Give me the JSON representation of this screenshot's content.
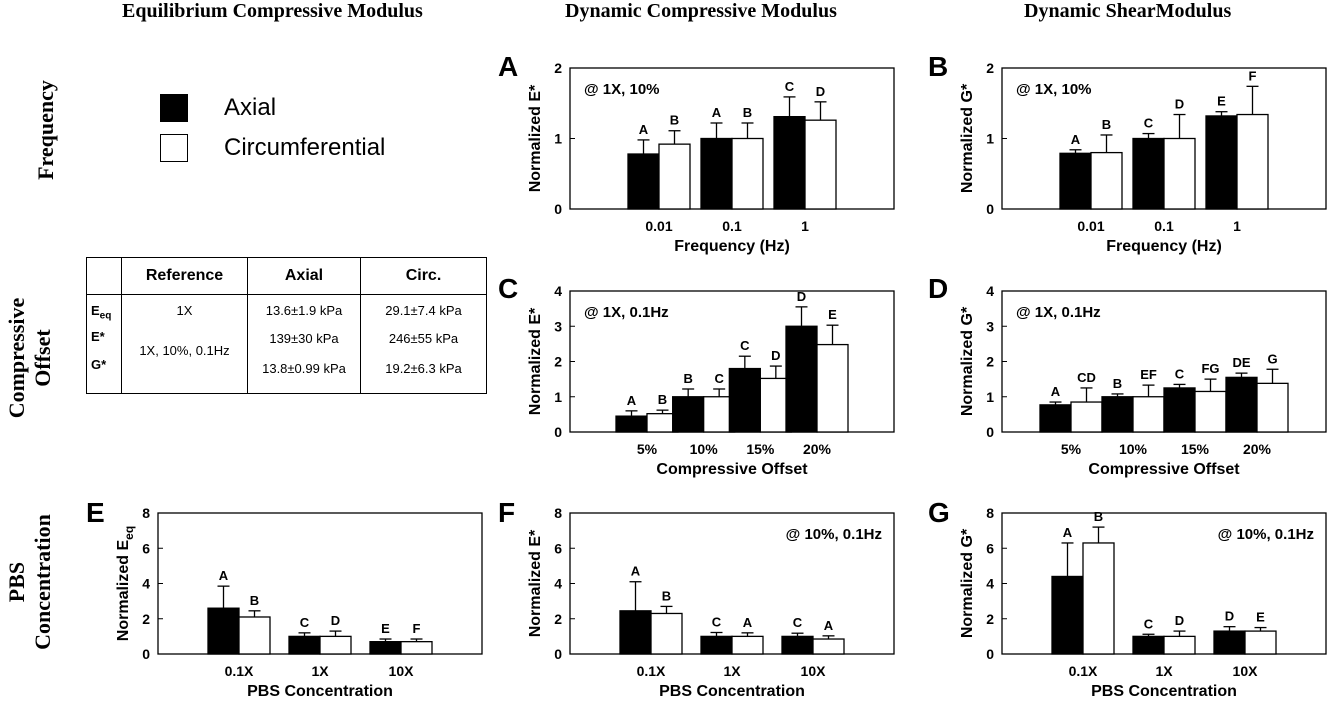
{
  "column_headers": [
    "Equilibrium Compressive Modulus",
    "Dynamic Compressive Modulus",
    "Dynamic ShearModulus"
  ],
  "row_headers": [
    [
      "Frequency"
    ],
    [
      "Compressive",
      "Offset"
    ],
    [
      "PBS",
      "Concentration"
    ]
  ],
  "legend": [
    {
      "label": "Axial",
      "color": "#000000"
    },
    {
      "label": "Circumferential",
      "color": "#ffffff"
    }
  ],
  "reference_table": {
    "headers": [
      "",
      "Reference",
      "Axial",
      "Circ."
    ],
    "row_labels": [
      "E",
      "E*",
      "G*"
    ],
    "row_label_subscripts": [
      "eq",
      "",
      ""
    ],
    "reference_values": [
      "1X",
      "1X, 10%, 0.1Hz"
    ],
    "axial": [
      "13.6±1.9 kPa",
      "139±30 kPa",
      "13.8±0.99 kPa"
    ],
    "circ": [
      "29.1±7.4 kPa",
      "246±55 kPa",
      "19.2±6.3 kPa"
    ]
  },
  "chart_data": [
    {
      "panel": "A",
      "type": "bar",
      "categories": [
        "0.01",
        "0.1",
        "1"
      ],
      "xlabel": "Frequency (Hz)",
      "ylabel": "Normalized E*",
      "ylim": [
        0,
        2
      ],
      "yticks": [
        "0",
        "1",
        "2"
      ],
      "annotation": "@ 1X, 10%",
      "annotation_position": "top-left",
      "series": [
        {
          "name": "Axial",
          "values": [
            0.78,
            1.0,
            1.31
          ],
          "errors": [
            0.2,
            0.22,
            0.28
          ],
          "letters": [
            "A",
            "A",
            "C"
          ]
        },
        {
          "name": "Circumferential",
          "values": [
            0.92,
            1.0,
            1.26
          ],
          "errors": [
            0.19,
            0.22,
            0.26
          ],
          "letters": [
            "B",
            "B",
            "D"
          ]
        }
      ]
    },
    {
      "panel": "B",
      "type": "bar",
      "categories": [
        "0.01",
        "0.1",
        "1"
      ],
      "xlabel": "Frequency (Hz)",
      "ylabel": "Normalized G*",
      "ylim": [
        0,
        2
      ],
      "yticks": [
        "0",
        "1",
        "2"
      ],
      "annotation": "@ 1X, 10%",
      "annotation_position": "top-left",
      "series": [
        {
          "name": "Axial",
          "values": [
            0.79,
            1.0,
            1.32
          ],
          "errors": [
            0.05,
            0.07,
            0.06
          ],
          "letters": [
            "A",
            "C",
            "E"
          ]
        },
        {
          "name": "Circumferential",
          "values": [
            0.8,
            1.0,
            1.34
          ],
          "errors": [
            0.25,
            0.34,
            0.4
          ],
          "letters": [
            "B",
            "D",
            "F"
          ]
        }
      ]
    },
    {
      "panel": "C",
      "type": "bar",
      "categories": [
        "5%",
        "10%",
        "15%",
        "20%"
      ],
      "xlabel": "Compressive Offset",
      "ylabel": "Normalized E*",
      "ylim": [
        0,
        4
      ],
      "yticks": [
        "0",
        "1",
        "2",
        "3",
        "4"
      ],
      "annotation": "@ 1X, 0.1Hz",
      "annotation_position": "top-left",
      "series": [
        {
          "name": "Axial",
          "values": [
            0.45,
            1.0,
            1.8,
            3.0
          ],
          "errors": [
            0.15,
            0.22,
            0.35,
            0.55
          ],
          "letters": [
            "A",
            "B",
            "C",
            "D"
          ]
        },
        {
          "name": "Circumferential",
          "values": [
            0.52,
            1.0,
            1.52,
            2.48
          ],
          "errors": [
            0.1,
            0.22,
            0.35,
            0.55
          ],
          "letters": [
            "B",
            "C",
            "D",
            "E"
          ]
        }
      ]
    },
    {
      "panel": "D",
      "type": "bar",
      "categories": [
        "5%",
        "10%",
        "15%",
        "20%"
      ],
      "xlabel": "Compressive Offset",
      "ylabel": "Normalized G*",
      "ylim": [
        0,
        4
      ],
      "yticks": [
        "0",
        "1",
        "2",
        "3",
        "4"
      ],
      "annotation": "@ 1X, 0.1Hz",
      "annotation_position": "top-left",
      "series": [
        {
          "name": "Axial",
          "values": [
            0.77,
            1.0,
            1.25,
            1.55
          ],
          "errors": [
            0.08,
            0.08,
            0.1,
            0.12
          ],
          "letters": [
            "A",
            "B",
            "C",
            "DE"
          ]
        },
        {
          "name": "Circumferential",
          "values": [
            0.85,
            1.0,
            1.15,
            1.38
          ],
          "errors": [
            0.4,
            0.33,
            0.35,
            0.4
          ],
          "letters": [
            "CD",
            "EF",
            "FG",
            "G"
          ]
        }
      ]
    },
    {
      "panel": "E",
      "type": "bar",
      "categories": [
        "0.1X",
        "1X",
        "10X"
      ],
      "xlabel": "PBS Concentration",
      "ylabel": "Normalized E",
      "ylabel_subscript": "eq",
      "ylim": [
        0,
        8
      ],
      "yticks": [
        "0",
        "2",
        "4",
        "6",
        "8"
      ],
      "annotation": "",
      "annotation_position": "",
      "series": [
        {
          "name": "Axial",
          "values": [
            2.6,
            1.0,
            0.7
          ],
          "errors": [
            1.25,
            0.2,
            0.15
          ],
          "letters": [
            "A",
            "C",
            "E"
          ]
        },
        {
          "name": "Circumferential",
          "values": [
            2.1,
            1.0,
            0.7
          ],
          "errors": [
            0.35,
            0.3,
            0.15
          ],
          "letters": [
            "B",
            "D",
            "F"
          ]
        }
      ]
    },
    {
      "panel": "F",
      "type": "bar",
      "categories": [
        "0.1X",
        "1X",
        "10X"
      ],
      "xlabel": "PBS Concentration",
      "ylabel": "Normalized E*",
      "ylim": [
        0,
        8
      ],
      "yticks": [
        "0",
        "2",
        "4",
        "6",
        "8"
      ],
      "annotation": "@ 10%, 0.1Hz",
      "annotation_position": "top-right",
      "series": [
        {
          "name": "Axial",
          "values": [
            2.45,
            1.0,
            1.0
          ],
          "errors": [
            1.65,
            0.22,
            0.18
          ],
          "letters": [
            "A",
            "C",
            "C"
          ]
        },
        {
          "name": "Circumferential",
          "values": [
            2.3,
            1.0,
            0.85
          ],
          "errors": [
            0.4,
            0.2,
            0.18
          ],
          "letters": [
            "B",
            "A",
            "A"
          ]
        }
      ]
    },
    {
      "panel": "G",
      "type": "bar",
      "categories": [
        "0.1X",
        "1X",
        "10X"
      ],
      "xlabel": "PBS Concentration",
      "ylabel": "Normalized G*",
      "ylim": [
        0,
        8
      ],
      "yticks": [
        "0",
        "2",
        "4",
        "6",
        "8"
      ],
      "annotation": "@ 10%, 0.1Hz",
      "annotation_position": "top-right",
      "series": [
        {
          "name": "Axial",
          "values": [
            4.4,
            1.0,
            1.3
          ],
          "errors": [
            1.9,
            0.12,
            0.25
          ],
          "letters": [
            "A",
            "C",
            "D"
          ]
        },
        {
          "name": "Circumferential",
          "values": [
            6.3,
            1.0,
            1.3
          ],
          "errors": [
            0.9,
            0.3,
            0.2
          ],
          "letters": [
            "B",
            "D",
            "E"
          ]
        }
      ]
    }
  ]
}
